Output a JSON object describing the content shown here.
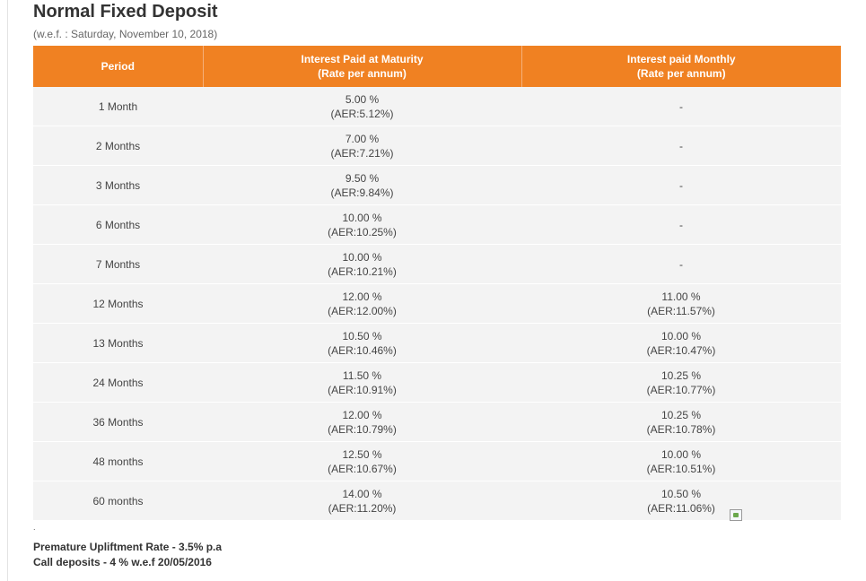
{
  "page": {
    "title": "Normal Fixed Deposit",
    "effective_date": "(w.e.f. : Saturday, November 10, 2018)"
  },
  "table": {
    "headers": {
      "period": "Period",
      "maturity_line1": "Interest Paid at Maturity",
      "maturity_line2": "(Rate per annum)",
      "monthly_line1": "Interest paid Monthly",
      "monthly_line2": "(Rate per annum)"
    },
    "rows": [
      {
        "period": "1 Month",
        "maturity_rate": "5.00 %",
        "maturity_aer": "(AER:5.12%)",
        "monthly_rate": "-",
        "monthly_aer": ""
      },
      {
        "period": "2 Months",
        "maturity_rate": "7.00 %",
        "maturity_aer": "(AER:7.21%)",
        "monthly_rate": "-",
        "monthly_aer": ""
      },
      {
        "period": "3 Months",
        "maturity_rate": "9.50 %",
        "maturity_aer": "(AER:9.84%)",
        "monthly_rate": "-",
        "monthly_aer": ""
      },
      {
        "period": "6 Months",
        "maturity_rate": "10.00 %",
        "maturity_aer": "(AER:10.25%)",
        "monthly_rate": "-",
        "monthly_aer": ""
      },
      {
        "period": "7 Months",
        "maturity_rate": "10.00 %",
        "maturity_aer": "(AER:10.21%)",
        "monthly_rate": "-",
        "monthly_aer": ""
      },
      {
        "period": "12 Months",
        "maturity_rate": "12.00 %",
        "maturity_aer": "(AER:12.00%)",
        "monthly_rate": "11.00 %",
        "monthly_aer": "(AER:11.57%)"
      },
      {
        "period": "13 Months",
        "maturity_rate": "10.50 %",
        "maturity_aer": "(AER:10.46%)",
        "monthly_rate": "10.00 %",
        "monthly_aer": "(AER:10.47%)"
      },
      {
        "period": "24 Months",
        "maturity_rate": "11.50 %",
        "maturity_aer": "(AER:10.91%)",
        "monthly_rate": "10.25 %",
        "monthly_aer": "(AER:10.77%)"
      },
      {
        "period": "36 Months",
        "maturity_rate": "12.00 %",
        "maturity_aer": "(AER:10.79%)",
        "monthly_rate": "10.25 %",
        "monthly_aer": "(AER:10.78%)"
      },
      {
        "period": "48 months",
        "maturity_rate": "12.50 %",
        "maturity_aer": "(AER:10.67%)",
        "monthly_rate": "10.00 %",
        "monthly_aer": "(AER:10.51%)"
      },
      {
        "period": "60 months",
        "maturity_rate": "14.00 %",
        "maturity_aer": "(AER:11.20%)",
        "monthly_rate": "10.50 %",
        "monthly_aer": "(AER:11.06%)"
      }
    ]
  },
  "notes": {
    "dot": ".",
    "premature": "Premature Upliftment Rate - 3.5% p.a",
    "call_deposits": "Call deposits - 4 % w.e.f 20/05/2016"
  },
  "colors": {
    "header_bg": "#f08122",
    "row_bg": "#f3f3f3"
  },
  "icons": {
    "broken_image": "broken-image-icon"
  }
}
